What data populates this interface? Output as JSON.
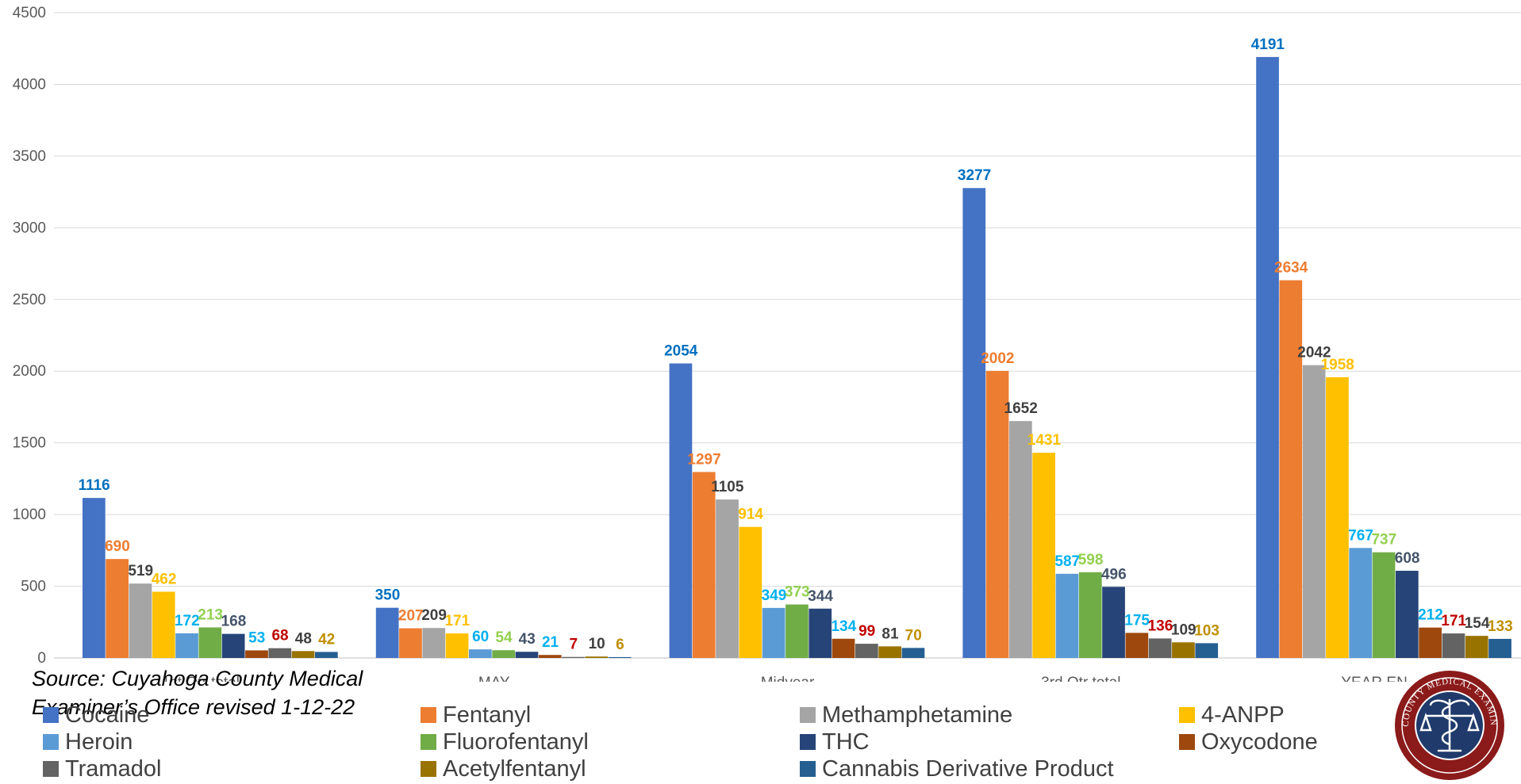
{
  "chart_data": {
    "type": "bar",
    "categories": [
      "1st Qtr total",
      "MAY",
      "Midyear",
      "3rd Qtr total",
      "YEAR EN"
    ],
    "ylim": [
      0,
      4500
    ],
    "yticks": [
      0,
      500,
      1000,
      1500,
      2000,
      2500,
      3000,
      3500,
      4000,
      4500
    ],
    "grid": true,
    "legend_position": "bottom",
    "series": [
      {
        "name": "Cocaine",
        "color": "#4472C4",
        "label_color": "#0070C0",
        "values": [
          1116,
          350,
          2054,
          3277,
          4191
        ]
      },
      {
        "name": "Fentanyl",
        "color": "#ED7D31",
        "label_color": "#ED7D31",
        "values": [
          690,
          207,
          1297,
          2002,
          2634
        ]
      },
      {
        "name": "Methamphetamine",
        "color": "#A5A5A5",
        "label_color": "#404040",
        "values": [
          519,
          209,
          1105,
          1652,
          2042
        ]
      },
      {
        "name": "4-ANPP",
        "color": "#FFC000",
        "label_color": "#FFC000",
        "values": [
          462,
          171,
          914,
          1431,
          1958
        ]
      },
      {
        "name": "Heroin",
        "color": "#5B9BD5",
        "label_color": "#00B0F0",
        "values": [
          172,
          60,
          349,
          587,
          767
        ]
      },
      {
        "name": "Fluorofentanyl",
        "color": "#70AD47",
        "label_color": "#92D050",
        "values": [
          213,
          54,
          373,
          598,
          737
        ]
      },
      {
        "name": "THC",
        "color": "#264478",
        "label_color": "#44546A",
        "values": [
          168,
          43,
          344,
          496,
          608
        ]
      },
      {
        "name": "Oxycodone",
        "color": "#9E480E",
        "label_color": "#00B0F0",
        "values": [
          53,
          21,
          134,
          175,
          212
        ]
      },
      {
        "name": "Tramadol",
        "color": "#636363",
        "label_color": "#C00000",
        "values": [
          68,
          7,
          99,
          136,
          171
        ]
      },
      {
        "name": "Acetylfentanyl",
        "color": "#997300",
        "label_color": "#404040",
        "values": [
          48,
          10,
          81,
          109,
          154
        ]
      },
      {
        "name": "Cannabis Derivative Product",
        "color": "#255E91",
        "label_color": "#BF9000",
        "values": [
          42,
          6,
          70,
          103,
          133
        ]
      }
    ]
  },
  "source_note": [
    "Source: Cuyahoga County Medical",
    "Examiner’s Office revised 1-12-22"
  ],
  "seal": {
    "text": "CUYAHOGA COUNTY MEDICAL EXAMINER'S OFFICE",
    "icon": "caduceus-scales-icon",
    "colors": {
      "ring": "#8B1A1A",
      "inner": "#1F3A6B",
      "emblem": "#FFFFFF"
    }
  }
}
